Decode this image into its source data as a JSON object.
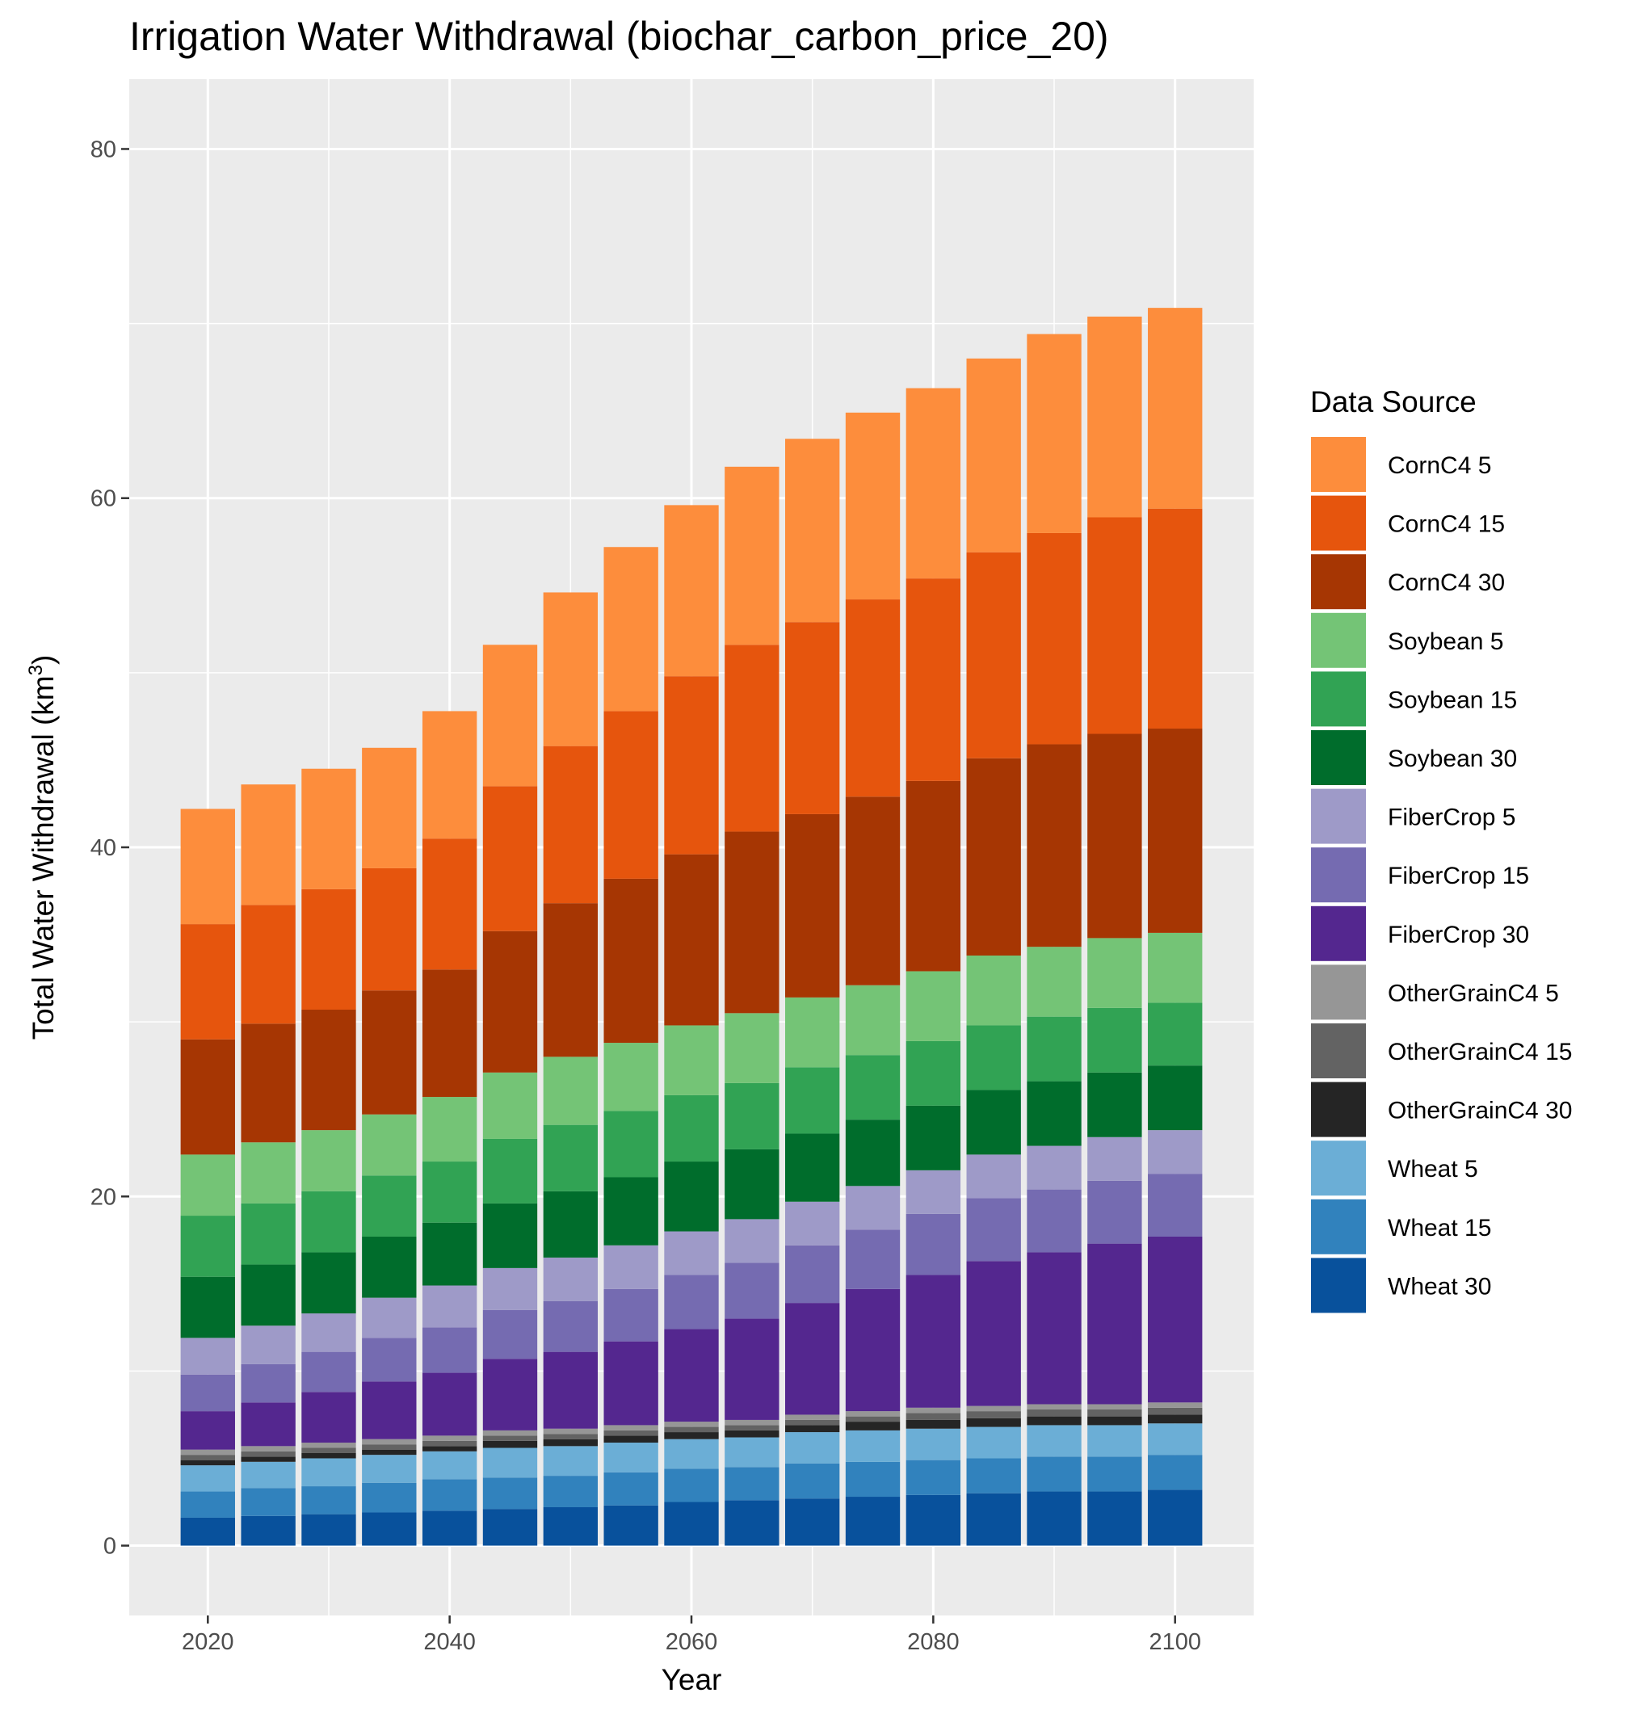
{
  "chart_data": {
    "type": "bar",
    "stacked": true,
    "title": "Irrigation Water Withdrawal (biochar_carbon_price_20)",
    "xlabel": "Year",
    "ylabel_main": "Total Water Withdrawal (km",
    "ylabel_sup": "3",
    "ylabel_end": ")",
    "legend_title": "Data Source",
    "legend_position": "right",
    "grid": true,
    "ylim": [
      -4,
      84
    ],
    "xlim": [
      2013.5,
      2106.5
    ],
    "x_ticks": [
      2020,
      2040,
      2060,
      2080,
      2100
    ],
    "y_ticks": [
      0,
      20,
      40,
      60,
      80
    ],
    "x": [
      2020,
      2025,
      2030,
      2035,
      2040,
      2045,
      2050,
      2055,
      2060,
      2065,
      2070,
      2075,
      2080,
      2085,
      2090,
      2095,
      2100
    ],
    "series": [
      {
        "name": "CornC4 5",
        "color": "#fd8d3c",
        "values": [
          6.6,
          6.9,
          6.9,
          6.9,
          7.3,
          8.1,
          8.8,
          9.4,
          9.8,
          10.2,
          10.5,
          10.7,
          10.9,
          11.1,
          11.4,
          11.5,
          11.5
        ]
      },
      {
        "name": "CornC4 15",
        "color": "#e6550d",
        "values": [
          6.6,
          6.8,
          6.9,
          7.0,
          7.5,
          8.3,
          9.0,
          9.6,
          10.2,
          10.7,
          11.0,
          11.3,
          11.6,
          11.8,
          12.1,
          12.4,
          12.6
        ]
      },
      {
        "name": "CornC4 30",
        "color": "#a63603",
        "values": [
          6.6,
          6.8,
          6.9,
          7.1,
          7.3,
          8.1,
          8.8,
          9.4,
          9.8,
          10.4,
          10.5,
          10.8,
          10.9,
          11.3,
          11.6,
          11.7,
          11.7
        ]
      },
      {
        "name": "Soybean 5",
        "color": "#74c476",
        "values": [
          3.5,
          3.5,
          3.5,
          3.5,
          3.7,
          3.8,
          3.9,
          3.9,
          4.0,
          4.0,
          4.0,
          4.0,
          4.0,
          4.0,
          4.0,
          4.0,
          4.0
        ]
      },
      {
        "name": "Soybean 15",
        "color": "#31a354",
        "values": [
          3.5,
          3.5,
          3.5,
          3.5,
          3.5,
          3.7,
          3.8,
          3.8,
          3.8,
          3.8,
          3.8,
          3.7,
          3.7,
          3.7,
          3.7,
          3.7,
          3.6
        ]
      },
      {
        "name": "Soybean 30",
        "color": "#006d2c",
        "values": [
          3.5,
          3.5,
          3.5,
          3.5,
          3.6,
          3.7,
          3.8,
          3.9,
          4.0,
          4.0,
          3.9,
          3.8,
          3.7,
          3.7,
          3.7,
          3.7,
          3.7
        ]
      },
      {
        "name": "FiberCrop 5",
        "color": "#9e9ac8",
        "values": [
          2.1,
          2.2,
          2.2,
          2.3,
          2.4,
          2.4,
          2.5,
          2.5,
          2.5,
          2.5,
          2.5,
          2.5,
          2.5,
          2.5,
          2.5,
          2.5,
          2.5
        ]
      },
      {
        "name": "FiberCrop 15",
        "color": "#756bb1",
        "values": [
          2.1,
          2.2,
          2.3,
          2.5,
          2.6,
          2.8,
          2.9,
          3.0,
          3.1,
          3.2,
          3.3,
          3.4,
          3.5,
          3.6,
          3.6,
          3.6,
          3.6
        ]
      },
      {
        "name": "FiberCrop 30",
        "color": "#54278f",
        "values": [
          2.2,
          2.5,
          2.9,
          3.3,
          3.6,
          4.1,
          4.4,
          4.8,
          5.3,
          5.8,
          6.4,
          7.0,
          7.6,
          8.3,
          8.7,
          9.2,
          9.5
        ]
      },
      {
        "name": "OtherGrainC4 5",
        "color": "#969696",
        "values": [
          0.3,
          0.3,
          0.3,
          0.3,
          0.3,
          0.3,
          0.3,
          0.3,
          0.3,
          0.3,
          0.3,
          0.3,
          0.3,
          0.3,
          0.3,
          0.3,
          0.3
        ]
      },
      {
        "name": "OtherGrainC4 15",
        "color": "#636363",
        "values": [
          0.3,
          0.3,
          0.3,
          0.3,
          0.3,
          0.3,
          0.3,
          0.3,
          0.3,
          0.3,
          0.3,
          0.3,
          0.4,
          0.4,
          0.4,
          0.4,
          0.4
        ]
      },
      {
        "name": "OtherGrainC4 30",
        "color": "#252525",
        "values": [
          0.3,
          0.3,
          0.3,
          0.3,
          0.3,
          0.4,
          0.4,
          0.4,
          0.4,
          0.4,
          0.4,
          0.5,
          0.5,
          0.5,
          0.5,
          0.5,
          0.5
        ]
      },
      {
        "name": "Wheat 5",
        "color": "#6baed6",
        "values": [
          1.5,
          1.5,
          1.6,
          1.6,
          1.6,
          1.7,
          1.7,
          1.7,
          1.7,
          1.7,
          1.8,
          1.8,
          1.8,
          1.8,
          1.8,
          1.8,
          1.8
        ]
      },
      {
        "name": "Wheat 15",
        "color": "#3182bd",
        "values": [
          1.5,
          1.6,
          1.6,
          1.7,
          1.8,
          1.8,
          1.8,
          1.9,
          1.9,
          1.9,
          2.0,
          2.0,
          2.0,
          2.0,
          2.0,
          2.0,
          2.0
        ]
      },
      {
        "name": "Wheat 30",
        "color": "#08519c",
        "values": [
          1.6,
          1.7,
          1.8,
          1.9,
          2.0,
          2.1,
          2.2,
          2.3,
          2.5,
          2.6,
          2.7,
          2.8,
          2.9,
          3.0,
          3.1,
          3.1,
          3.2
        ]
      }
    ],
    "stack_order_bottom_to_top": [
      "Wheat 30",
      "Wheat 15",
      "Wheat 5",
      "OtherGrainC4 30",
      "OtherGrainC4 15",
      "OtherGrainC4 5",
      "FiberCrop 30",
      "FiberCrop 15",
      "FiberCrop 5",
      "Soybean 30",
      "Soybean 15",
      "Soybean 5",
      "CornC4 30",
      "CornC4 15",
      "CornC4 5"
    ],
    "colors": {
      "panel_background": "#ebebeb",
      "gridline": "#ffffff",
      "tick_text": "#4d4d4d"
    }
  }
}
